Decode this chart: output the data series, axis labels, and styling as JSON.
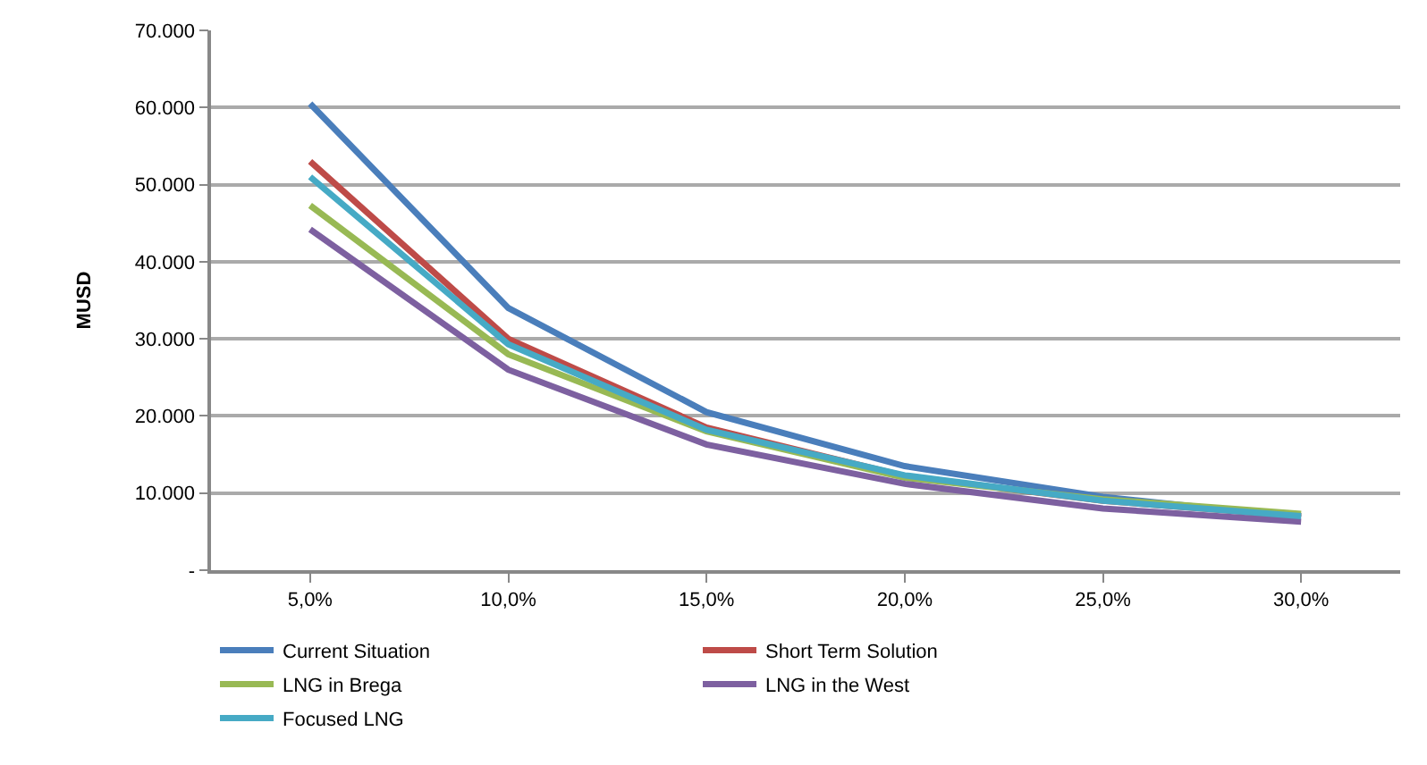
{
  "chart_data": {
    "type": "line",
    "ylabel": "MUSD",
    "categories": [
      "5,0%",
      "10,0%",
      "15,0%",
      "20,0%",
      "25,0%",
      "30,0%"
    ],
    "ylim": [
      0,
      70000
    ],
    "yticks": [
      {
        "value": 0,
        "label": "-"
      },
      {
        "value": 10000,
        "label": "10.000"
      },
      {
        "value": 20000,
        "label": "20.000"
      },
      {
        "value": 30000,
        "label": "30.000"
      },
      {
        "value": 40000,
        "label": "40.000"
      },
      {
        "value": 50000,
        "label": "50.000"
      },
      {
        "value": 60000,
        "label": "60.000"
      },
      {
        "value": 70000,
        "label": "70.000"
      }
    ],
    "grid": "y",
    "legend": "bottom",
    "marker": "none",
    "line_style": "solid",
    "series": [
      {
        "name": "Current Situation",
        "color": "#4a7ebb",
        "values": [
          60500,
          34000,
          20500,
          13500,
          9500,
          6800
        ]
      },
      {
        "name": "Short Term Solution",
        "color": "#be4b48",
        "values": [
          53000,
          30000,
          18500,
          12200,
          9000,
          7000
        ]
      },
      {
        "name": "LNG in Brega",
        "color": "#98b954",
        "values": [
          47300,
          28000,
          18000,
          12000,
          9200,
          7300
        ]
      },
      {
        "name": "LNG in the West",
        "color": "#7d60a0",
        "values": [
          44200,
          26000,
          16300,
          11200,
          8000,
          6300
        ]
      },
      {
        "name": "Focused LNG",
        "color": "#46aac5",
        "values": [
          51000,
          29300,
          18200,
          12300,
          9000,
          7000
        ]
      }
    ]
  }
}
